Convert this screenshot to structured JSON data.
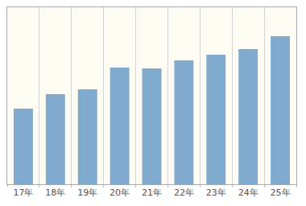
{
  "chart_data": {
    "type": "bar",
    "categories": [
      "17年",
      "18年",
      "19年",
      "20年",
      "21年",
      "22年",
      "23年",
      "24年",
      "25年"
    ],
    "values": [
      94,
      112,
      118,
      145,
      144,
      154,
      161,
      168,
      184
    ],
    "color": "#80abcf",
    "ylim": [
      0,
      220
    ],
    "grid": true,
    "tick_labels": "x"
  }
}
